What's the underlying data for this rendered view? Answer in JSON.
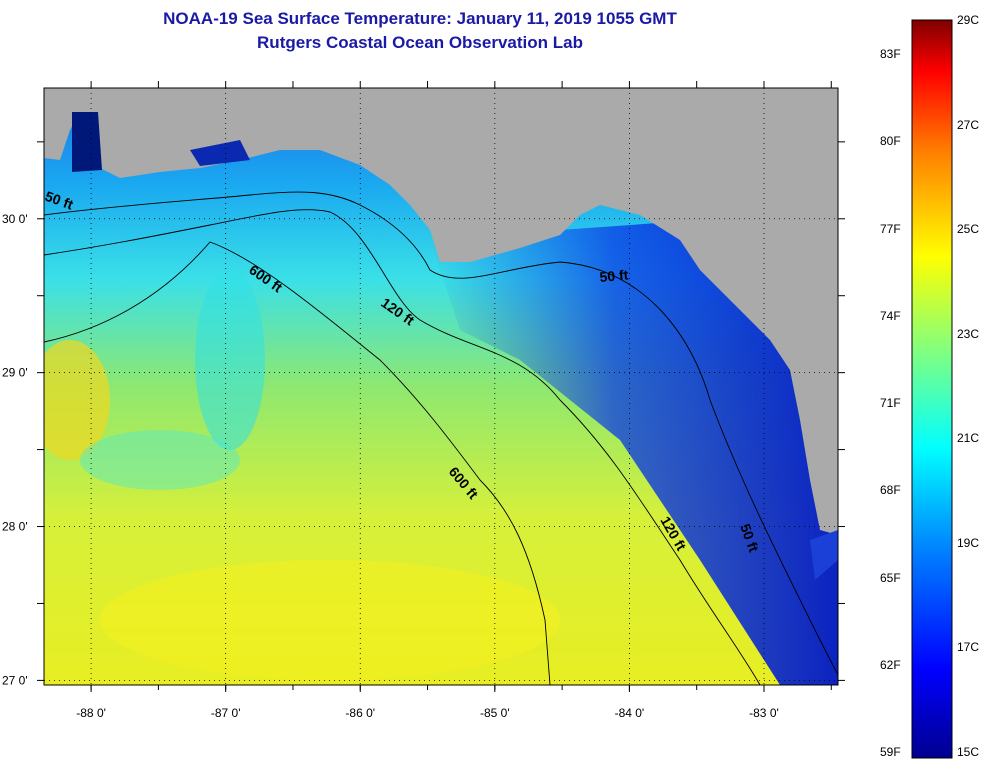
{
  "title": "NOAA-19 Sea Surface Temperature:  January 11, 2019 1055 GMT",
  "subtitle": "Rutgers Coastal Ocean Observation Lab",
  "map": {
    "lon_labels": [
      "-88 0'",
      "-87 0'",
      "-86 0'",
      "-85 0'",
      "-84 0'",
      "-83 0'"
    ],
    "lon_values": [
      -88,
      -87,
      -86,
      -85,
      -84,
      -83
    ],
    "lat_labels": [
      "30 0'",
      "29 0'",
      "28 0'",
      "27 0'"
    ],
    "lat_values": [
      30,
      29,
      28,
      27
    ],
    "lon_range": [
      -88.35,
      -82.45
    ],
    "lat_range": [
      26.97,
      30.85
    ],
    "contour_labels": [
      "50 ft",
      "600 ft",
      "120 ft",
      "50 ft",
      "600 ft",
      "120 ft",
      "50 ft"
    ],
    "colors": {
      "land": "#aaaaaa",
      "contour": "#000000",
      "graticule": "#000000"
    }
  },
  "colorbar": {
    "fahrenheit": [
      "83F",
      "80F",
      "77F",
      "74F",
      "71F",
      "68F",
      "65F",
      "62F",
      "59F"
    ],
    "celsius": [
      "29C",
      "27C",
      "25C",
      "23C",
      "21C",
      "19C",
      "17C",
      "15C"
    ],
    "range_c": [
      15,
      29
    ],
    "colors": [
      "#00008f",
      "#0000ff",
      "#0080ff",
      "#00ffff",
      "#80ff80",
      "#ffff00",
      "#ff8000",
      "#ff0000",
      "#800000"
    ]
  }
}
